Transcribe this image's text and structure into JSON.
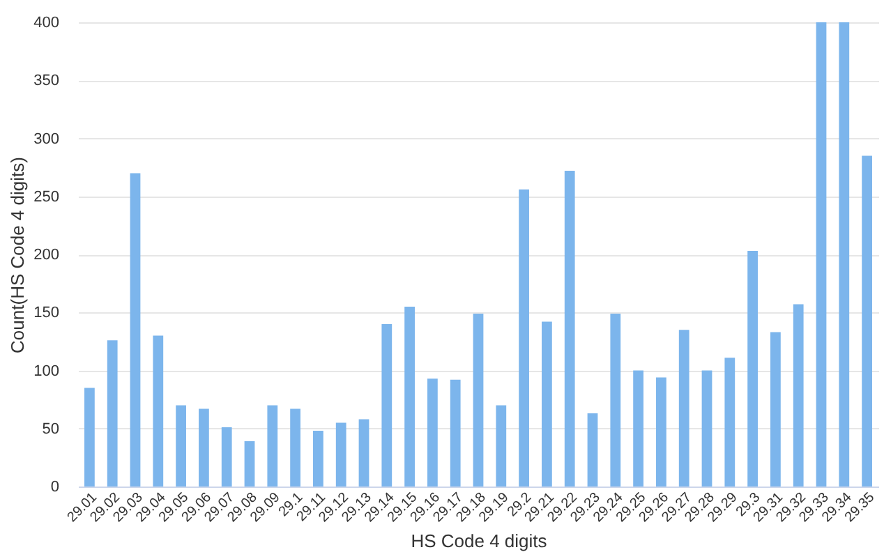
{
  "chart_data": {
    "type": "bar",
    "xlabel": "HS Code 4 digits",
    "ylabel": "Count(HS Code 4 digits)",
    "categories": [
      "29.01",
      "29.02",
      "29.03",
      "29.04",
      "29.05",
      "29.06",
      "29.07",
      "29.08",
      "29.09",
      "29.1",
      "29.11",
      "29.12",
      "29.13",
      "29.14",
      "29.15",
      "29.16",
      "29.17",
      "29.18",
      "29.19",
      "29.2",
      "29.21",
      "29.22",
      "29.23",
      "29.24",
      "29.25",
      "29.26",
      "29.27",
      "29.28",
      "29.29",
      "29.3",
      "29.31",
      "29.32",
      "29.33",
      "29.34",
      "29.35"
    ],
    "values": [
      85,
      126,
      270,
      130,
      70,
      67,
      51,
      39,
      70,
      67,
      48,
      55,
      58,
      140,
      155,
      93,
      92,
      149,
      70,
      256,
      142,
      272,
      63,
      149,
      100,
      94,
      135,
      100,
      111,
      203,
      133,
      157,
      400,
      400,
      285
    ],
    "color": "#7cb5ec",
    "ylim": [
      0,
      400
    ],
    "yticks": [
      0,
      50,
      100,
      150,
      200,
      250,
      300,
      350,
      400
    ],
    "grid": "y"
  }
}
